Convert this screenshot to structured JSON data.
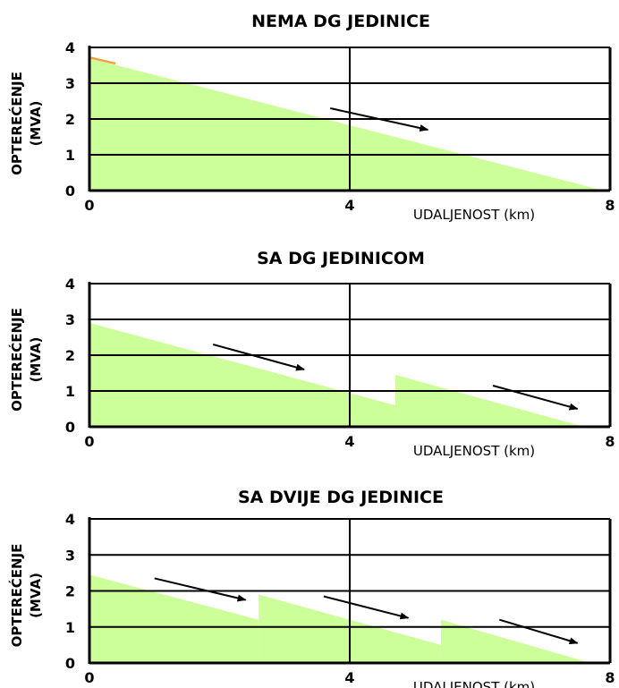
{
  "colors": {
    "fill": "#ccff99",
    "grid": "#000000",
    "arrow": "#000000",
    "accent": "#f0a040"
  },
  "chart_data": [
    {
      "type": "area",
      "title": "NEMA DG JEDINICE",
      "ylabel": [
        "OPTEREĆENJE",
        "(MVA)"
      ],
      "xlabel": "UDALJENOST (km)",
      "xlim": [
        0,
        8
      ],
      "ylim": [
        0,
        4
      ],
      "x_ticks": [
        "0",
        "4",
        "8"
      ],
      "y_ticks": [
        "0",
        "1",
        "2",
        "3",
        "4"
      ],
      "grid": true,
      "series": [
        {
          "points": [
            [
              0,
              3.7
            ],
            [
              7.9,
              0
            ]
          ]
        }
      ],
      "arrows": [
        {
          "from": [
            3.7,
            2.3
          ],
          "to": [
            5.2,
            1.7
          ]
        }
      ]
    },
    {
      "type": "area",
      "title": "SA DG JEDINICOM",
      "ylabel": [
        "OPTEREĆENJE",
        "(MVA)"
      ],
      "xlabel": "UDALJENOST (km)",
      "xlim": [
        0,
        8
      ],
      "ylim": [
        0,
        4
      ],
      "x_ticks": [
        "0",
        "4",
        "8"
      ],
      "y_ticks": [
        "0",
        "1",
        "2",
        "3",
        "4"
      ],
      "grid": true,
      "series": [
        {
          "points": [
            [
              0,
              2.9
            ],
            [
              4.7,
              0.6
            ]
          ]
        },
        {
          "points": [
            [
              4.7,
              1.45
            ],
            [
              7.6,
              0
            ]
          ]
        }
      ],
      "arrows": [
        {
          "from": [
            1.9,
            2.3
          ],
          "to": [
            3.3,
            1.6
          ]
        },
        {
          "from": [
            6.2,
            1.15
          ],
          "to": [
            7.5,
            0.5
          ]
        }
      ]
    },
    {
      "type": "area",
      "title": "SA DVIJE DG JEDINICE",
      "ylabel": [
        "OPTEREĆENJE",
        "(MVA)"
      ],
      "xlabel": "UDALJENOST (km)",
      "xlim": [
        0,
        8
      ],
      "ylim": [
        0,
        4
      ],
      "x_ticks": [
        "0",
        "4",
        "8"
      ],
      "y_ticks": [
        "0",
        "1",
        "2",
        "3",
        "4"
      ],
      "grid": true,
      "series": [
        {
          "points": [
            [
              0,
              2.45
            ],
            [
              2.6,
              1.2
            ]
          ]
        },
        {
          "points": [
            [
              2.6,
              1.9
            ],
            [
              5.4,
              0.5
            ]
          ]
        },
        {
          "points": [
            [
              5.4,
              1.2
            ],
            [
              7.7,
              0
            ]
          ]
        }
      ],
      "arrows": [
        {
          "from": [
            1.0,
            2.35
          ],
          "to": [
            2.4,
            1.75
          ]
        },
        {
          "from": [
            3.6,
            1.85
          ],
          "to": [
            4.9,
            1.25
          ]
        },
        {
          "from": [
            6.3,
            1.2
          ],
          "to": [
            7.5,
            0.55
          ]
        }
      ]
    }
  ]
}
